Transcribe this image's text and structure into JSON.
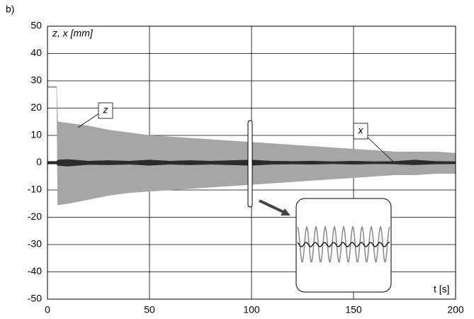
{
  "chart_data": {
    "type": "band",
    "panel_label": "b)",
    "y_label": "z, x [mm]",
    "x_label": "t [s]",
    "annotations": [
      "z",
      "x"
    ],
    "x": [
      0,
      4.5,
      5,
      10,
      20,
      30,
      40,
      50,
      60,
      70,
      80,
      90,
      100,
      110,
      120,
      130,
      140,
      150,
      160,
      170,
      180,
      190,
      200
    ],
    "series": [
      {
        "name": "z",
        "color": "#a6a6a6",
        "upper": [
          28,
          28,
          15,
          14.5,
          13.5,
          12,
          11,
          10,
          9.5,
          9,
          8.5,
          8,
          7.5,
          7,
          6.5,
          6,
          5.5,
          5,
          4.5,
          4,
          4,
          4,
          3.5
        ],
        "lower": [
          27.5,
          27.5,
          -15.5,
          -15,
          -13.5,
          -12,
          -11,
          -10.5,
          -10,
          -9.5,
          -9,
          -8.5,
          -8,
          -7.5,
          -7,
          -6.5,
          -6,
          -5.5,
          -5,
          -4.5,
          -4.5,
          -4,
          -4
        ]
      },
      {
        "name": "x",
        "color": "#2b2b2b",
        "upper": [
          0.5,
          0.5,
          1,
          1.2,
          0.6,
          0.8,
          0.6,
          1,
          0.6,
          0.8,
          0.6,
          0.8,
          1,
          0.6,
          0.5,
          0.6,
          0.4,
          0.6,
          0.4,
          0.5,
          1,
          0.5,
          0.4
        ],
        "lower": [
          -0.5,
          -0.5,
          -1,
          -1.3,
          -0.7,
          -0.8,
          -0.6,
          -1,
          -0.6,
          -0.8,
          -0.6,
          -0.8,
          -1,
          -0.6,
          -0.5,
          -0.6,
          -0.4,
          -0.6,
          -0.4,
          -0.5,
          -0.8,
          -0.5,
          -0.4
        ]
      }
    ],
    "xlim": [
      0,
      200
    ],
    "xticks": [
      0,
      50,
      100,
      150,
      200
    ],
    "ylim": [
      -50,
      50
    ],
    "yticks": [
      -50,
      -40,
      -30,
      -20,
      -10,
      0,
      10,
      20,
      30,
      40,
      50
    ],
    "grid": true
  }
}
